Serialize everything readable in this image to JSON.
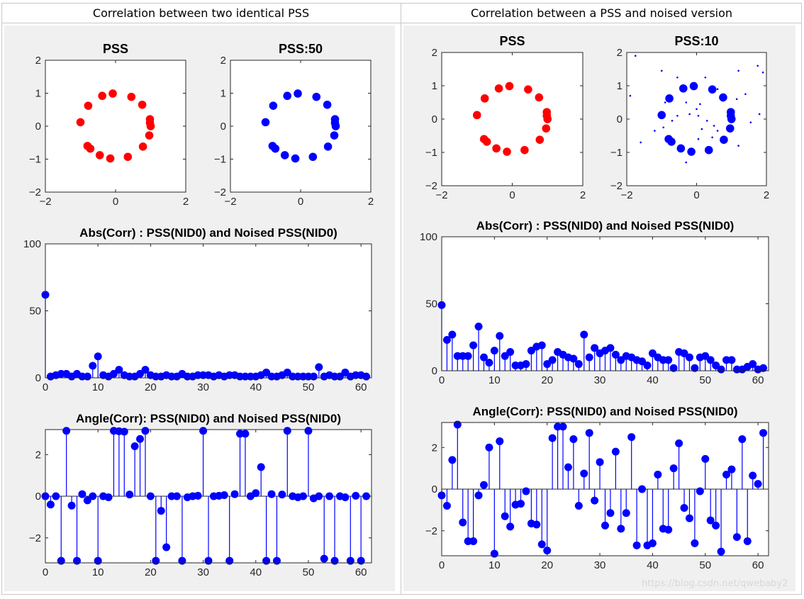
{
  "headers": {
    "left": "Correlation between two identical PSS",
    "right": "Correlation between a PSS and noised version"
  },
  "watermark": "https://blog.csdn.net/qwebaby2",
  "colors": {
    "red": "#ff0000",
    "blue": "#0000ff",
    "panel_bg": "#f0f0f0"
  },
  "chart_data": [
    {
      "type": "scatter",
      "title": "PSS",
      "xlim": [
        -2,
        2
      ],
      "ylim": [
        -2,
        2
      ],
      "xticks": [
        -2,
        0,
        2
      ],
      "yticks": [
        -2,
        -1,
        0,
        1,
        2
      ],
      "series": [
        {
          "color": "#ff0000",
          "points": [
            [
              0.98,
              0.21
            ],
            [
              0.76,
              0.65
            ],
            [
              0.45,
              0.89
            ],
            [
              -0.08,
              0.99
            ],
            [
              -0.38,
              0.92
            ],
            [
              -0.78,
              0.62
            ],
            [
              -1.0,
              0.12
            ],
            [
              -0.8,
              -0.6
            ],
            [
              -0.72,
              -0.68
            ],
            [
              -0.45,
              -0.88
            ],
            [
              -0.15,
              -0.98
            ],
            [
              0.35,
              -0.93
            ],
            [
              0.78,
              -0.62
            ],
            [
              0.96,
              -0.28
            ],
            [
              1.0,
              0.0
            ],
            [
              0.98,
              0.1
            ]
          ]
        }
      ]
    },
    {
      "type": "scatter",
      "title": "PSS:50",
      "xlim": [
        -2,
        2
      ],
      "ylim": [
        -2,
        2
      ],
      "xticks": [
        -2,
        0,
        2
      ],
      "yticks": [
        -2,
        -1,
        0,
        1,
        2
      ],
      "series": [
        {
          "color": "#0000ff",
          "points": [
            [
              0.98,
              0.21
            ],
            [
              0.76,
              0.65
            ],
            [
              0.45,
              0.89
            ],
            [
              -0.08,
              0.99
            ],
            [
              -0.38,
              0.92
            ],
            [
              -0.78,
              0.62
            ],
            [
              -1.0,
              0.12
            ],
            [
              -0.8,
              -0.6
            ],
            [
              -0.72,
              -0.68
            ],
            [
              -0.45,
              -0.88
            ],
            [
              -0.15,
              -0.98
            ],
            [
              0.35,
              -0.93
            ],
            [
              0.78,
              -0.62
            ],
            [
              0.96,
              -0.28
            ],
            [
              1.0,
              0.0
            ],
            [
              0.98,
              0.1
            ]
          ]
        }
      ]
    },
    {
      "type": "stem",
      "title": "Abs(Corr) : PSS(NID0) and Noised PSS(NID0)",
      "xlim": [
        0,
        62
      ],
      "ylim": [
        0,
        100
      ],
      "xticks": [
        0,
        10,
        20,
        30,
        40,
        50,
        60
      ],
      "yticks": [
        0,
        50,
        100
      ],
      "x": [
        0,
        1,
        2,
        3,
        4,
        5,
        6,
        7,
        8,
        9,
        10,
        11,
        12,
        13,
        14,
        15,
        16,
        17,
        18,
        19,
        20,
        21,
        22,
        23,
        24,
        25,
        26,
        27,
        28,
        29,
        30,
        31,
        32,
        33,
        34,
        35,
        36,
        37,
        38,
        39,
        40,
        41,
        42,
        43,
        44,
        45,
        46,
        47,
        48,
        49,
        50,
        51,
        52,
        53,
        54,
        55,
        56,
        57,
        58,
        59,
        60,
        61
      ],
      "values": [
        62,
        1,
        2,
        3,
        3,
        1,
        3,
        1,
        1,
        9,
        16,
        2,
        1,
        3,
        6,
        2,
        1,
        1,
        3,
        6,
        2,
        1,
        1,
        2,
        1,
        1,
        3,
        1,
        1,
        2,
        2,
        2,
        1,
        2,
        1,
        2,
        2,
        1,
        1,
        1,
        1,
        2,
        4,
        1,
        1,
        2,
        4,
        1,
        1,
        1,
        1,
        1,
        8,
        1,
        2,
        1,
        1,
        4,
        1,
        2,
        2,
        1
      ],
      "color": "#0000ff"
    },
    {
      "type": "stem",
      "title": "Angle(Corr): PSS(NID0) and Noised PSS(NID0)",
      "xlim": [
        0,
        62
      ],
      "ylim": [
        -3.2,
        3.2
      ],
      "xticks": [
        0,
        10,
        20,
        30,
        40,
        50,
        60
      ],
      "yticks": [
        -2,
        0,
        2
      ],
      "x": [
        0,
        1,
        2,
        3,
        4,
        5,
        6,
        7,
        8,
        9,
        10,
        11,
        12,
        13,
        14,
        15,
        16,
        17,
        18,
        19,
        20,
        21,
        22,
        23,
        24,
        25,
        26,
        27,
        28,
        29,
        30,
        31,
        32,
        33,
        34,
        35,
        36,
        37,
        38,
        39,
        40,
        41,
        42,
        43,
        44,
        45,
        46,
        47,
        48,
        49,
        50,
        51,
        52,
        53,
        54,
        55,
        56,
        57,
        58,
        59,
        60,
        61
      ],
      "values": [
        0.0,
        -0.4,
        0.0,
        -3.1,
        3.14,
        -0.45,
        -3.1,
        0.1,
        -0.2,
        0.0,
        -3.1,
        0.0,
        -0.05,
        3.14,
        3.12,
        3.1,
        0.08,
        2.4,
        2.75,
        3.14,
        0.0,
        -3.1,
        -0.7,
        -2.45,
        0.0,
        0.0,
        -3.1,
        -0.05,
        0.0,
        0.02,
        3.14,
        -3.1,
        0.0,
        0.02,
        0.05,
        -3.1,
        0.1,
        3.0,
        3.0,
        0.0,
        0.15,
        1.4,
        -3.1,
        0.1,
        -3.1,
        0.08,
        3.14,
        0.0,
        -0.05,
        0.0,
        3.14,
        -0.1,
        0.0,
        -3.0,
        0.0,
        -3.1,
        0.0,
        -0.05,
        -3.1,
        0.02,
        -3.1,
        0.0
      ],
      "color": "#0000ff"
    },
    {
      "type": "scatter",
      "title": "PSS",
      "xlim": [
        -2,
        2
      ],
      "ylim": [
        -2,
        2
      ],
      "xticks": [
        -2,
        0,
        2
      ],
      "yticks": [
        -2,
        -1,
        0,
        1,
        2
      ],
      "series": [
        {
          "color": "#ff0000",
          "points": [
            [
              0.98,
              0.21
            ],
            [
              0.76,
              0.65
            ],
            [
              0.45,
              0.89
            ],
            [
              -0.08,
              0.99
            ],
            [
              -0.38,
              0.92
            ],
            [
              -0.78,
              0.62
            ],
            [
              -1.0,
              0.12
            ],
            [
              -0.8,
              -0.6
            ],
            [
              -0.72,
              -0.68
            ],
            [
              -0.45,
              -0.88
            ],
            [
              -0.15,
              -0.98
            ],
            [
              0.35,
              -0.93
            ],
            [
              0.78,
              -0.62
            ],
            [
              0.96,
              -0.28
            ],
            [
              1.0,
              0.0
            ],
            [
              0.98,
              0.1
            ]
          ]
        }
      ]
    },
    {
      "type": "scatter",
      "title": "PSS:10",
      "xlim": [
        -2,
        2
      ],
      "ylim": [
        -2,
        2
      ],
      "xticks": [
        -2,
        0,
        2
      ],
      "yticks": [
        -2,
        -1,
        0,
        1,
        2
      ],
      "series": [
        {
          "color": "#0000ff",
          "marker": "large",
          "points": [
            [
              0.98,
              0.21
            ],
            [
              0.76,
              0.65
            ],
            [
              0.45,
              0.89
            ],
            [
              -0.08,
              0.99
            ],
            [
              -0.38,
              0.92
            ],
            [
              -0.78,
              0.62
            ],
            [
              -1.0,
              0.12
            ],
            [
              -0.8,
              -0.6
            ],
            [
              -0.72,
              -0.68
            ],
            [
              -0.45,
              -0.88
            ],
            [
              -0.15,
              -0.98
            ],
            [
              0.35,
              -0.93
            ],
            [
              0.78,
              -0.62
            ],
            [
              0.96,
              -0.28
            ],
            [
              1.0,
              0.0
            ],
            [
              0.98,
              0.1
            ]
          ]
        },
        {
          "color": "#0000ff",
          "marker": "small",
          "points": [
            [
              -1.75,
              1.9
            ],
            [
              -1.9,
              0.7
            ],
            [
              -1.0,
              1.45
            ],
            [
              -0.55,
              1.25
            ],
            [
              0.25,
              1.25
            ],
            [
              0.6,
              0.9
            ],
            [
              1.2,
              1.45
            ],
            [
              1.75,
              1.6
            ],
            [
              1.9,
              1.4
            ],
            [
              1.4,
              0.75
            ],
            [
              1.15,
              0.6
            ],
            [
              -1.6,
              -0.7
            ],
            [
              -1.2,
              -0.35
            ],
            [
              -0.9,
              0.5
            ],
            [
              -0.3,
              0.5
            ],
            [
              0.0,
              0.3
            ],
            [
              0.1,
              0.45
            ],
            [
              -0.2,
              0.15
            ],
            [
              0.05,
              0.1
            ],
            [
              0.3,
              -0.05
            ],
            [
              0.5,
              -0.2
            ],
            [
              0.15,
              -0.3
            ],
            [
              0.6,
              -0.35
            ],
            [
              -0.7,
              -0.05
            ],
            [
              -0.55,
              0.1
            ],
            [
              0.75,
              0.55
            ],
            [
              0.9,
              0.1
            ],
            [
              0.45,
              -0.55
            ],
            [
              -0.3,
              -1.3
            ],
            [
              1.2,
              -0.8
            ],
            [
              1.8,
              0.15
            ],
            [
              1.55,
              -0.1
            ],
            [
              -0.95,
              -0.25
            ],
            [
              0.05,
              -0.6
            ]
          ]
        }
      ]
    },
    {
      "type": "stem",
      "title": "Abs(Corr) : PSS(NID0) and Noised PSS(NID0)",
      "xlim": [
        0,
        62
      ],
      "ylim": [
        0,
        100
      ],
      "xticks": [
        0,
        10,
        20,
        30,
        40,
        50,
        60
      ],
      "yticks": [
        0,
        50,
        100
      ],
      "x": [
        0,
        1,
        2,
        3,
        4,
        5,
        6,
        7,
        8,
        9,
        10,
        11,
        12,
        13,
        14,
        15,
        16,
        17,
        18,
        19,
        20,
        21,
        22,
        23,
        24,
        25,
        26,
        27,
        28,
        29,
        30,
        31,
        32,
        33,
        34,
        35,
        36,
        37,
        38,
        39,
        40,
        41,
        42,
        43,
        44,
        45,
        46,
        47,
        48,
        49,
        50,
        51,
        52,
        53,
        54,
        55,
        56,
        57,
        58,
        59,
        60,
        61
      ],
      "values": [
        49,
        23,
        27,
        11,
        11,
        11,
        19,
        33,
        10,
        6,
        15,
        26,
        11,
        14,
        4,
        4,
        5,
        15,
        18,
        19,
        5,
        8,
        14,
        12,
        10,
        9,
        5,
        27,
        10,
        17,
        13,
        15,
        17,
        12,
        8,
        11,
        10,
        8,
        7,
        4,
        13,
        10,
        8,
        8,
        2,
        14,
        13,
        10,
        2,
        10,
        11,
        8,
        4,
        1,
        8,
        8,
        1,
        1,
        3,
        5,
        1,
        2
      ],
      "color": "#0000ff"
    },
    {
      "type": "stem",
      "title": "Angle(Corr): PSS(NID0) and Noised PSS(NID0)",
      "xlim": [
        0,
        62
      ],
      "ylim": [
        -3.2,
        3.2
      ],
      "xticks": [
        0,
        10,
        20,
        30,
        40,
        50,
        60
      ],
      "yticks": [
        -2,
        0,
        2
      ],
      "x": [
        0,
        1,
        2,
        3,
        4,
        5,
        6,
        7,
        8,
        9,
        10,
        11,
        12,
        13,
        14,
        15,
        16,
        17,
        18,
        19,
        20,
        21,
        22,
        23,
        24,
        25,
        26,
        27,
        28,
        29,
        30,
        31,
        32,
        33,
        34,
        35,
        36,
        37,
        38,
        39,
        40,
        41,
        42,
        43,
        44,
        45,
        46,
        47,
        48,
        49,
        50,
        51,
        52,
        53,
        54,
        55,
        56,
        57,
        58,
        59,
        60,
        61
      ],
      "values": [
        -0.3,
        -0.8,
        1.4,
        3.1,
        -1.6,
        -2.5,
        -2.5,
        -0.3,
        0.2,
        2.0,
        -3.1,
        2.3,
        -1.3,
        -1.8,
        -0.75,
        -0.7,
        -0.1,
        -1.65,
        -1.7,
        -2.65,
        -2.95,
        2.45,
        3.0,
        3.0,
        1.05,
        2.4,
        -0.8,
        0.75,
        2.7,
        -0.55,
        1.3,
        -1.75,
        -1.15,
        1.8,
        -1.9,
        -1.15,
        2.5,
        -2.7,
        0.0,
        -2.7,
        -2.6,
        0.7,
        -1.9,
        -1.95,
        1.0,
        2.2,
        -0.9,
        -1.4,
        -2.6,
        -0.1,
        1.45,
        -1.5,
        -1.75,
        -3.0,
        0.7,
        0.95,
        -2.3,
        2.4,
        -2.5,
        0.65,
        0.25,
        2.7
      ],
      "color": "#0000ff"
    }
  ]
}
